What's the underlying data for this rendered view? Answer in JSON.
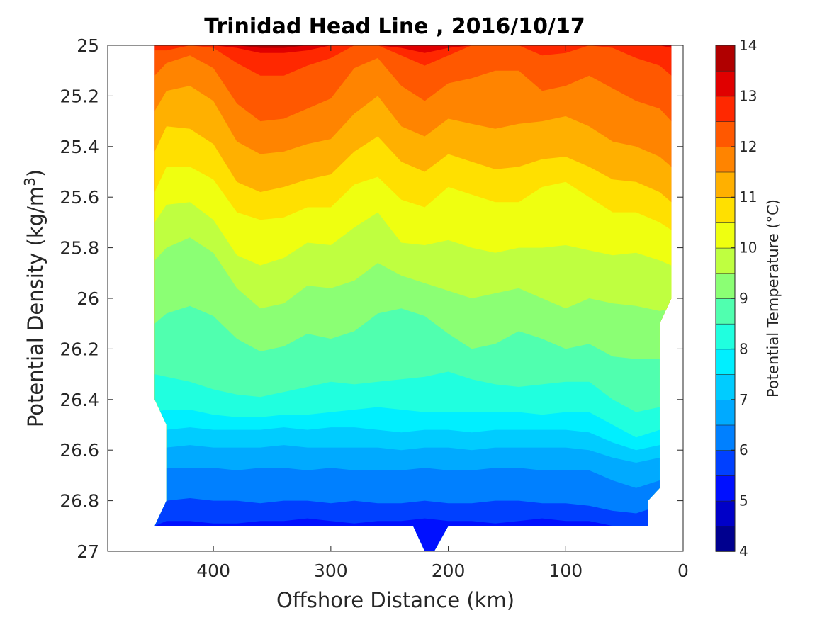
{
  "chart_data": {
    "type": "contour",
    "title": "Trinidad Head Line , 2016/10/17",
    "xlabel": "Offshore Distance (km)",
    "ylabel": "Potential Density (kg/m",
    "ylabel_sup": "3",
    "ylabel_close": ")",
    "xlim": [
      490,
      0
    ],
    "ylim": [
      25,
      27
    ],
    "x_reversed": true,
    "y_reversed": true,
    "xticks": [
      400,
      300,
      200,
      100,
      0
    ],
    "yticks": [
      25,
      25.2,
      25.4,
      25.6,
      25.8,
      26,
      26.2,
      26.4,
      26.6,
      26.8,
      27
    ],
    "xtick_labels": [
      "400",
      "300",
      "200",
      "100",
      "0"
    ],
    "ytick_labels": [
      "25",
      "25.2",
      "25.4",
      "25.6",
      "25.8",
      "26",
      "26.2",
      "26.4",
      "26.6",
      "26.8",
      "27"
    ],
    "grid": false,
    "colormap": "jet",
    "levels": [
      4,
      4.5,
      5,
      5.5,
      6,
      6.5,
      7,
      7.5,
      8,
      8.5,
      9,
      9.5,
      10,
      10.5,
      11,
      11.5,
      12,
      12.5,
      13,
      13.5,
      14
    ],
    "level_colors": [
      "#00008f",
      "#0000c8",
      "#0010ff",
      "#0040ff",
      "#0080ff",
      "#00aaff",
      "#00ccff",
      "#00efff",
      "#20ffdf",
      "#50ffaf",
      "#8bff74",
      "#bfff40",
      "#efff10",
      "#ffe000",
      "#ffb000",
      "#ff8400",
      "#ff5800",
      "#ff2800",
      "#e00000",
      "#b00000"
    ],
    "colorbar": {
      "label": "Potential Temperature (°C)",
      "range": [
        4,
        14
      ],
      "ticks": [
        4,
        5,
        6,
        7,
        8,
        9,
        10,
        11,
        12,
        13,
        14
      ],
      "tick_labels": [
        "4",
        "5",
        "6",
        "7",
        "8",
        "9",
        "10",
        "11",
        "12",
        "13",
        "14"
      ]
    },
    "stations_km": [
      450,
      440,
      420,
      400,
      380,
      360,
      340,
      320,
      300,
      280,
      260,
      240,
      220,
      200,
      180,
      160,
      140,
      120,
      100,
      80,
      60,
      40,
      20,
      10
    ],
    "isotherms": [
      {
        "temp": 5.5,
        "density": [
          26.9,
          26.88,
          26.88,
          26.89,
          26.89,
          26.88,
          26.88,
          26.87,
          26.88,
          26.89,
          26.88,
          26.88,
          26.87,
          26.88,
          26.88,
          26.89,
          26.88,
          26.87,
          26.88,
          26.88,
          26.9,
          26.9,
          26.9,
          26.9
        ]
      },
      {
        "temp": 6.0,
        "density": [
          26.86,
          26.8,
          26.79,
          26.8,
          26.8,
          26.81,
          26.8,
          26.8,
          26.81,
          26.8,
          26.81,
          26.81,
          26.8,
          26.81,
          26.81,
          26.8,
          26.8,
          26.81,
          26.81,
          26.82,
          26.84,
          26.85,
          26.82,
          26.8
        ]
      },
      {
        "temp": 6.5,
        "density": [
          26.76,
          26.67,
          26.67,
          26.67,
          26.68,
          26.67,
          26.67,
          26.68,
          26.67,
          26.68,
          26.68,
          26.68,
          26.67,
          26.68,
          26.68,
          26.67,
          26.67,
          26.68,
          26.68,
          26.68,
          26.72,
          26.75,
          26.72,
          26.7
        ]
      },
      {
        "temp": 7.0,
        "density": [
          26.62,
          26.59,
          26.58,
          26.59,
          26.59,
          26.59,
          26.58,
          26.59,
          26.59,
          26.59,
          26.59,
          26.6,
          26.59,
          26.59,
          26.6,
          26.59,
          26.59,
          26.59,
          26.59,
          26.6,
          26.63,
          26.65,
          26.63,
          26.62
        ]
      },
      {
        "temp": 7.5,
        "density": [
          26.55,
          26.52,
          26.51,
          26.52,
          26.52,
          26.52,
          26.51,
          26.52,
          26.51,
          26.51,
          26.52,
          26.53,
          26.52,
          26.52,
          26.53,
          26.52,
          26.52,
          26.52,
          26.52,
          26.53,
          26.57,
          26.6,
          26.58,
          26.55
        ]
      },
      {
        "temp": 8.0,
        "density": [
          26.45,
          26.44,
          26.44,
          26.46,
          26.47,
          26.47,
          26.46,
          26.46,
          26.45,
          26.44,
          26.43,
          26.44,
          26.45,
          26.45,
          26.45,
          26.45,
          26.45,
          26.46,
          26.45,
          26.45,
          26.5,
          26.55,
          26.52,
          26.5
        ]
      },
      {
        "temp": 8.5,
        "density": [
          26.3,
          26.31,
          26.33,
          26.36,
          26.38,
          26.39,
          26.37,
          26.35,
          26.33,
          26.34,
          26.33,
          26.32,
          26.31,
          26.29,
          26.32,
          26.34,
          26.35,
          26.34,
          26.33,
          26.33,
          26.4,
          26.45,
          26.43,
          26.4
        ]
      },
      {
        "temp": 9.0,
        "density": [
          26.1,
          26.06,
          26.03,
          26.07,
          26.16,
          26.21,
          26.19,
          26.14,
          26.16,
          26.13,
          26.06,
          26.04,
          26.07,
          26.14,
          26.2,
          26.18,
          26.13,
          26.16,
          26.2,
          26.18,
          26.23,
          26.24,
          26.24,
          26.22
        ]
      },
      {
        "temp": 9.5,
        "density": [
          25.85,
          25.8,
          25.76,
          25.82,
          25.96,
          26.04,
          26.02,
          25.95,
          25.96,
          25.93,
          25.86,
          25.91,
          25.94,
          25.97,
          26.0,
          25.98,
          25.96,
          26.0,
          26.04,
          26.0,
          26.02,
          26.03,
          26.05,
          26.04
        ]
      },
      {
        "temp": 10.0,
        "density": [
          25.7,
          25.63,
          25.62,
          25.69,
          25.83,
          25.87,
          25.84,
          25.78,
          25.79,
          25.72,
          25.66,
          25.78,
          25.79,
          25.77,
          25.8,
          25.82,
          25.8,
          25.8,
          25.79,
          25.81,
          25.83,
          25.82,
          25.85,
          25.87
        ]
      },
      {
        "temp": 10.5,
        "density": [
          25.58,
          25.48,
          25.48,
          25.53,
          25.66,
          25.69,
          25.68,
          25.64,
          25.64,
          25.55,
          25.52,
          25.61,
          25.64,
          25.56,
          25.59,
          25.62,
          25.62,
          25.56,
          25.54,
          25.6,
          25.66,
          25.66,
          25.7,
          25.73
        ]
      },
      {
        "temp": 11.0,
        "density": [
          25.42,
          25.32,
          25.33,
          25.39,
          25.54,
          25.58,
          25.56,
          25.53,
          25.51,
          25.42,
          25.36,
          25.46,
          25.5,
          25.43,
          25.46,
          25.49,
          25.48,
          25.45,
          25.44,
          25.48,
          25.53,
          25.54,
          25.58,
          25.62
        ]
      },
      {
        "temp": 11.5,
        "density": [
          25.26,
          25.18,
          25.16,
          25.22,
          25.38,
          25.43,
          25.42,
          25.39,
          25.37,
          25.27,
          25.2,
          25.32,
          25.36,
          25.29,
          25.31,
          25.33,
          25.31,
          25.3,
          25.28,
          25.32,
          25.38,
          25.4,
          25.44,
          25.48
        ]
      },
      {
        "temp": 12.0,
        "density": [
          25.12,
          25.07,
          25.04,
          25.09,
          25.23,
          25.3,
          25.29,
          25.25,
          25.21,
          25.09,
          25.05,
          25.16,
          25.22,
          25.15,
          25.13,
          25.1,
          25.1,
          25.18,
          25.16,
          25.12,
          25.17,
          25.22,
          25.25,
          25.3
        ]
      },
      {
        "temp": 12.5,
        "density": [
          25.02,
          25.02,
          25.0,
          25.01,
          25.07,
          25.12,
          25.12,
          25.08,
          25.05,
          25.0,
          25.0,
          25.04,
          25.08,
          25.04,
          25.0,
          25.0,
          25.0,
          25.04,
          25.03,
          25.0,
          25.01,
          25.05,
          25.08,
          25.12
        ]
      },
      {
        "temp": 13.0,
        "density": [
          25.0,
          25.0,
          25.0,
          25.0,
          25.01,
          25.03,
          25.03,
          25.02,
          25.0,
          25.0,
          25.0,
          25.01,
          25.03,
          25.01,
          25.0,
          25.0,
          25.0,
          25.0,
          25.0,
          25.0,
          25.0,
          25.0,
          25.0,
          25.01
        ]
      },
      {
        "temp": 13.5,
        "density": [
          25.0,
          25.0,
          25.0,
          25.0,
          25.0,
          25.01,
          25.01,
          25.0,
          25.0,
          25.0,
          25.0,
          25.0,
          25.0,
          25.0,
          25.0,
          25.0,
          25.0,
          25.0,
          25.0,
          25.0,
          25.0,
          25.0,
          25.0,
          25.0
        ]
      }
    ],
    "bottom_boundary": [
      26.9,
      26.9,
      26.9,
      26.9,
      26.9,
      26.9,
      26.9,
      26.9,
      26.9,
      26.9,
      26.9,
      26.9,
      26.9,
      26.9,
      26.9,
      26.9,
      26.9,
      26.9,
      26.9,
      26.9,
      26.9,
      26.9,
      26.9,
      26.9
    ],
    "left_edge": [
      [
        450,
        26.9
      ],
      [
        440,
        26.8
      ],
      [
        440,
        26.5
      ],
      [
        450,
        26.4
      ],
      [
        450,
        25.0
      ]
    ],
    "right_edge": [
      [
        10,
        25.0
      ],
      [
        10,
        26.0
      ],
      [
        20,
        26.1
      ],
      [
        20,
        26.75
      ],
      [
        30,
        26.8
      ],
      [
        30,
        26.9
      ]
    ],
    "bottom_notch": [
      [
        230,
        26.9
      ],
      [
        220,
        27.0
      ],
      [
        212,
        27.0
      ],
      [
        200,
        26.9
      ]
    ]
  }
}
